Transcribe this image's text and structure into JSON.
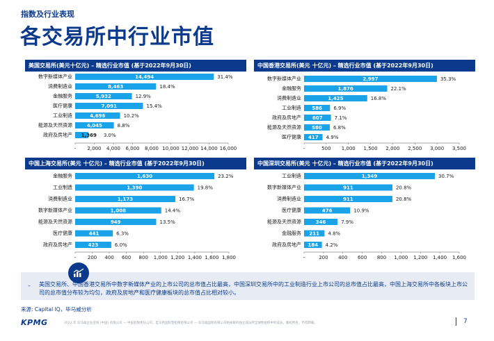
{
  "section_label": "指数及行业表现",
  "page_title": "各交易所中行业市值",
  "chart_data": [
    {
      "type": "bar",
      "orientation": "horizontal",
      "title": "美国交易所(美元十亿元) – 精选行业市值 (基于2022年9月30日)",
      "categories": [
        "数字新媒体产业",
        "消费制造业",
        "金融服务",
        "医疗健康",
        "工业制造",
        "能源及天然资源",
        "政府及房地产"
      ],
      "values": [
        14494,
        8463,
        5932,
        7091,
        4696,
        4045,
        1369
      ],
      "value_labels": [
        "14,494",
        "8,463",
        "5,932",
        "7,091",
        "4,696",
        "4,045",
        "1,369"
      ],
      "percent_labels": [
        "31.4%",
        "18.4%",
        "12.9%",
        "15.4%",
        "10.2%",
        "8.8%",
        "3.0%"
      ],
      "xlim": [
        0,
        16000
      ],
      "ticks": [
        0,
        2000,
        4000,
        6000,
        8000,
        10000,
        12000,
        14000,
        16000
      ],
      "tick_labels": [
        "-",
        "2,000",
        "4,000",
        "6,000",
        "8,000",
        "10,000",
        "12,000",
        "14,000",
        "16,000"
      ],
      "grid": false
    },
    {
      "type": "bar",
      "orientation": "horizontal",
      "title": "中国香港交易所(美元 十亿元) – 精选行业市值 (基于2022年9月30日)",
      "categories": [
        "数字新媒体产业",
        "金融服务",
        "消费制造业",
        "工业制造",
        "政府及房地产",
        "能源及天然资源",
        "医疗健康"
      ],
      "values": [
        2997,
        1876,
        1425,
        586,
        607,
        580,
        417
      ],
      "value_labels": [
        "2,997",
        "1,876",
        "1,425",
        "586",
        "607",
        "580",
        "417"
      ],
      "percent_labels": [
        "35.3%",
        "22.1%",
        "16.8%",
        "6.9%",
        "7.1%",
        "6.8%",
        "4.9%"
      ],
      "xlim": [
        0,
        3500
      ],
      "ticks": [
        0,
        500,
        1000,
        1500,
        2000,
        2500,
        3000,
        3500
      ],
      "tick_labels": [
        "-",
        "500",
        "1,000",
        "1,500",
        "2,000",
        "2,500",
        "3,000",
        "3,500"
      ],
      "grid": false
    },
    {
      "type": "bar",
      "orientation": "horizontal",
      "title": "中国上海交易所(美元 十亿元) – 精选行业市值 (基于2022年9月30日)",
      "categories": [
        "金融服务",
        "工业制造",
        "消费制造业",
        "数字新媒体产业",
        "能源及天然资源",
        "医疗健康",
        "政府及房地产"
      ],
      "values": [
        1630,
        1390,
        1173,
        1008,
        949,
        441,
        423
      ],
      "value_labels": [
        "1,630",
        "1,390",
        "1,173",
        "1,008",
        "949",
        "441",
        "423"
      ],
      "percent_labels": [
        "23.2%",
        "19.8%",
        "16.7%",
        "14.4%",
        "13.5%",
        "6.3%",
        "6.0%"
      ],
      "xlim": [
        0,
        1800
      ],
      "ticks": [
        0,
        200,
        400,
        600,
        800,
        1000,
        1200,
        1400,
        1600,
        1800
      ],
      "tick_labels": [
        "-",
        "200",
        "400",
        "600",
        "800",
        "1,000",
        "1,200",
        "1,400",
        "1,600",
        "1,800"
      ],
      "grid": false
    },
    {
      "type": "bar",
      "orientation": "horizontal",
      "title": "中国深圳交易所(美元 十亿元) – 精选行业市值 (基于2022年9月30日)",
      "categories": [
        "工业制造",
        "数字新媒体产业",
        "消费制造业",
        "医疗健康",
        "能源及天然资源",
        "金融服务",
        "政府及房地产"
      ],
      "values": [
        1349,
        911,
        911,
        476,
        346,
        211,
        184
      ],
      "value_labels": [
        "1,349",
        "911",
        "911",
        "476",
        "346",
        "211",
        "184"
      ],
      "percent_labels": [
        "30.7%",
        "20.8%",
        "20.8%",
        "10.9%",
        "7.9%",
        "4.8%",
        "4.2%"
      ],
      "xlim": [
        0,
        1600
      ],
      "ticks": [
        0,
        200,
        400,
        600,
        800,
        1000,
        1200,
        1400,
        1600
      ],
      "tick_labels": [
        "-",
        "200",
        "400",
        "600",
        "800",
        "1,000",
        "1,200",
        "1,400",
        "1,600"
      ],
      "grid": false
    }
  ],
  "footnote": {
    "dash": "–",
    "text": "美国交易所、中国香港交易所中数字新媒体产业的上市公司的总市值占比最高，中国深圳交易所中的工业制造行业上市公司的总市值占比最高，中国上海交易所中各板块上市公司的总市值分布较为均匀，政府及房地产和医疗健康板块的总市值占比相对较小。"
  },
  "source": "来源: Capital IQ，毕马威分析",
  "logo": "KPMG",
  "legal": "2022 年 毕马威企业咨询 (中国) 有限公司 — 中国有限责任公司，是与英国私营担保有限公司 — 毕马威国际有限公司相关联的独立成员所全球性组织中的成员。版权所有，不得转载。",
  "page_number": "7",
  "colors": {
    "brand": "#0b3a8c",
    "bar": "#1aa3e8",
    "note_bg": "#e7ecf4"
  }
}
